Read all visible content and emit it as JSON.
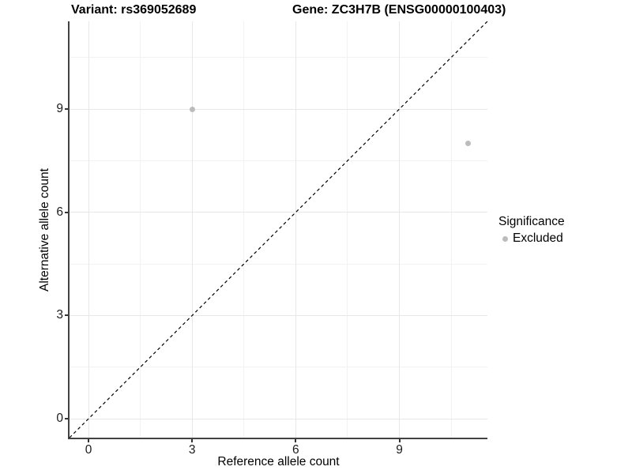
{
  "chart_data": {
    "type": "scatter",
    "title_left": "Variant: rs369052689",
    "title_right": "Gene: ZC3H7B (ENSG00000100403)",
    "xlabel": "Reference allele count",
    "ylabel": "Alternative allele count",
    "xlim": [
      -0.55,
      11.55
    ],
    "ylim": [
      -0.55,
      11.55
    ],
    "major_ticks": [
      0,
      3,
      6,
      9
    ],
    "minor_ticks": [
      1.5,
      4.5,
      7.5,
      10.5
    ],
    "x_tick_labels": [
      "0",
      "3",
      "6",
      "9"
    ],
    "y_tick_labels": [
      "0",
      "3",
      "6",
      "9"
    ],
    "points": [
      {
        "x": 3,
        "y": 9,
        "series": "Excluded"
      },
      {
        "x": 11,
        "y": 8,
        "series": "Excluded"
      }
    ],
    "identity_line": "y = x dashed",
    "grid": "major and minor gridlines, light gray, white background",
    "legend": {
      "position": "right",
      "title": "Significance",
      "items": [
        {
          "label": "Excluded",
          "color": "#bcbcbc"
        }
      ]
    },
    "colors": {
      "point": "#bcbcbc",
      "major_grid": "#e7e7e7",
      "minor_grid": "#f2f2f2",
      "axis_line": "#424242",
      "identity_line": "#000000",
      "background": "#ffffff"
    }
  }
}
